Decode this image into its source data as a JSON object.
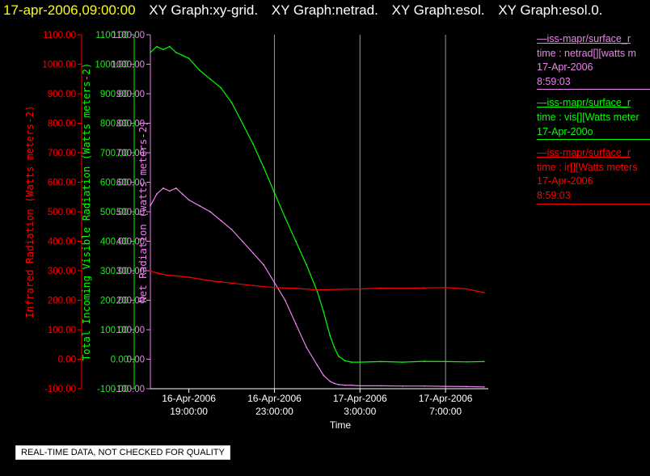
{
  "title_bar": {
    "timestamp": "17-apr-2006,09:00:00",
    "items": [
      "XY Graph:xy-grid.",
      "XY Graph:netrad.",
      "XY Graph:esol.",
      "XY Graph:esol.0."
    ],
    "timestamp_color": "#ffff00",
    "item_color": "#ffffff"
  },
  "legend": [
    {
      "color": "#ee82ee",
      "lines": [
        "—iss-mapr/surface_r",
        "time : netrad[][watts m",
        "17-Apr-2006",
        "8:59:03"
      ]
    },
    {
      "color": "#00ff00",
      "lines": [
        "—iss-mapr/surface_r",
        "time : vis[][Watts meter",
        "17-Apr-200o"
      ]
    },
    {
      "color": "#ff0000",
      "lines": [
        "—iss-mapr/surface_r",
        "time : ir[][Watts meters",
        "17-Apr-2006",
        "8:59:03"
      ]
    }
  ],
  "qa_note": "REAL-TIME DATA, NOT CHECKED FOR QUALITY",
  "chart_data": {
    "type": "line",
    "xlabel": "Time",
    "x_ticks": [
      {
        "hours": 0,
        "date": "16-Apr-2006",
        "time": "19:00:00"
      },
      {
        "hours": 4,
        "date": "16-Apr-2006",
        "time": "23:00:00"
      },
      {
        "hours": 8,
        "date": "17-Apr-2006",
        "time": "3:00:00"
      },
      {
        "hours": 12,
        "date": "17-Apr-2006",
        "time": "7:00:00"
      }
    ],
    "xlim_hours": [
      -1.8,
      14.0
    ],
    "ylim": [
      -100,
      1100
    ],
    "y_ticks": [
      "-100.00",
      "0.00",
      "100.00",
      "200.00",
      "300.00",
      "400.00",
      "500.00",
      "600.00",
      "700.00",
      "800.00",
      "900.00",
      "1000.00",
      "1100.00"
    ],
    "axes": [
      {
        "label": "Infrared Radiation (Watts meters-2)",
        "color": "#ff0000"
      },
      {
        "label": "Total Incoming Visible Radiation (Watts meters-2)",
        "color": "#00ff00"
      },
      {
        "label": "Net Radiation (watts meters-2)",
        "color": "#ee82ee"
      }
    ],
    "vertical_gridlines_hours": [
      4,
      8,
      12
    ],
    "series": [
      {
        "color": "#00ff00",
        "x_hours": [
          -1.8,
          -1.5,
          -1.2,
          -0.9,
          -0.6,
          -0.3,
          0.0,
          0.5,
          1.0,
          1.5,
          2.0,
          2.5,
          3.0,
          3.5,
          4.0,
          4.5,
          5.0,
          5.5,
          6.0,
          6.3,
          6.6,
          6.8,
          7.0,
          7.3,
          7.6,
          8.0,
          9.0,
          10.0,
          11.0,
          12.0,
          13.0,
          13.8
        ],
        "values": [
          1040,
          1060,
          1050,
          1060,
          1040,
          1030,
          1020,
          980,
          950,
          920,
          870,
          800,
          730,
          650,
          565,
          480,
          400,
          320,
          230,
          160,
          80,
          40,
          10,
          -5,
          -10,
          -10,
          -8,
          -10,
          -7,
          -8,
          -9,
          -8
        ]
      },
      {
        "color": "#ee82ee",
        "x_hours": [
          -1.8,
          -1.5,
          -1.2,
          -0.9,
          -0.6,
          -0.3,
          0.0,
          0.5,
          1.0,
          1.5,
          2.0,
          2.5,
          3.0,
          3.5,
          4.0,
          4.5,
          5.0,
          5.5,
          6.0,
          6.3,
          6.6,
          6.8,
          7.0,
          7.3,
          7.6,
          8.0,
          9.0,
          10.0,
          11.0,
          12.0,
          13.0,
          13.8
        ],
        "values": [
          520,
          560,
          580,
          570,
          580,
          560,
          540,
          520,
          500,
          470,
          440,
          400,
          360,
          320,
          260,
          200,
          120,
          40,
          -20,
          -55,
          -75,
          -82,
          -86,
          -88,
          -88,
          -90,
          -90,
          -91,
          -91,
          -92,
          -93,
          -94
        ]
      },
      {
        "color": "#ff0000",
        "x_hours": [
          -1.8,
          -1.5,
          -1.0,
          -0.5,
          0.0,
          0.5,
          1.0,
          1.5,
          2.0,
          3.0,
          4.0,
          5.0,
          6.0,
          7.0,
          8.0,
          9.0,
          10.0,
          11.0,
          12.0,
          13.0,
          13.8
        ],
        "values": [
          300,
          292,
          285,
          282,
          278,
          272,
          266,
          262,
          258,
          250,
          243,
          240,
          235,
          237,
          238,
          241,
          240,
          242,
          243,
          238,
          226
        ]
      }
    ]
  }
}
